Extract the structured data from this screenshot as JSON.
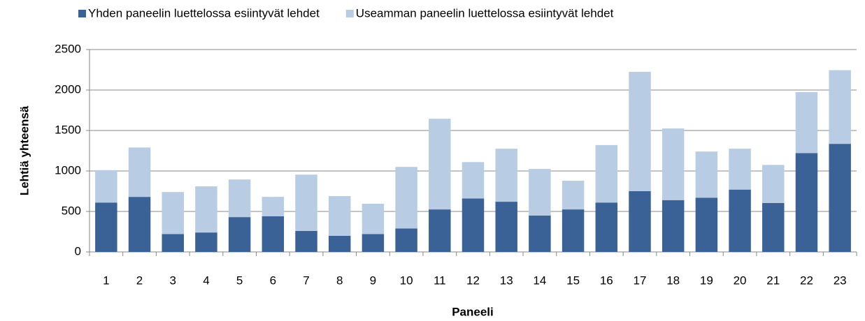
{
  "chart_data": {
    "type": "bar",
    "stacked": true,
    "xlabel": "Paneeli",
    "ylabel": "Lehtiä yhteensä",
    "categories": [
      "1",
      "2",
      "3",
      "4",
      "5",
      "6",
      "7",
      "8",
      "9",
      "10",
      "11",
      "12",
      "13",
      "14",
      "15",
      "16",
      "17",
      "18",
      "19",
      "20",
      "21",
      "22",
      "23"
    ],
    "series": [
      {
        "name": "Yhden paneelin luettelossa esiintyvät lehdet",
        "color": "#3a6296",
        "values": [
          610,
          680,
          220,
          240,
          430,
          440,
          260,
          200,
          220,
          290,
          525,
          660,
          620,
          450,
          525,
          610,
          750,
          640,
          670,
          770,
          605,
          1220,
          1335
        ]
      },
      {
        "name": "Useamman paneelin luettelossa esiintyvät lehdet",
        "color": "#b8cce4",
        "values": [
          400,
          610,
          520,
          570,
          465,
          240,
          695,
          490,
          375,
          760,
          1120,
          450,
          655,
          575,
          355,
          710,
          1475,
          885,
          570,
          505,
          470,
          755,
          910
        ]
      }
    ],
    "ylim": [
      0,
      2500
    ],
    "yticks": [
      0,
      500,
      1000,
      1500,
      2000,
      2500
    ],
    "grid": true,
    "legend": "top"
  }
}
